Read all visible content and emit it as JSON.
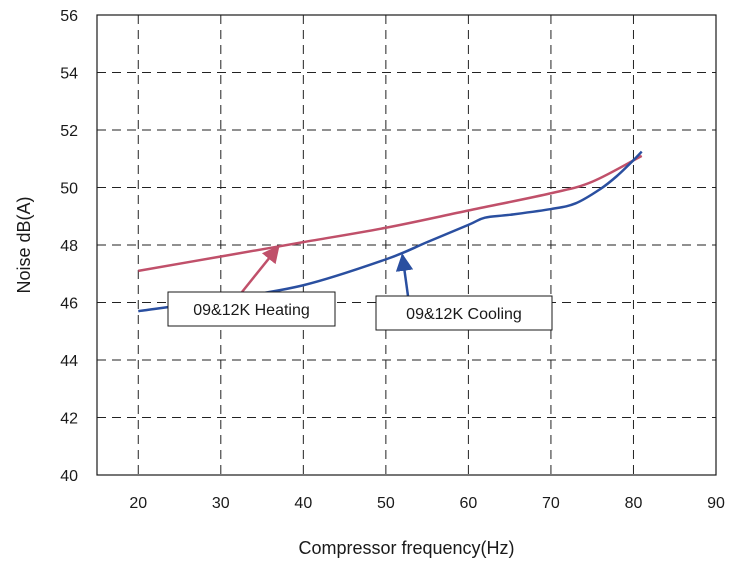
{
  "chart_data": {
    "type": "line",
    "title": "",
    "xlabel": "Compressor frequency(Hz)",
    "ylabel": "Noise dB(A)",
    "xlim": [
      15,
      90
    ],
    "ylim": [
      40,
      56
    ],
    "x_ticks": [
      "20",
      "30",
      "40",
      "50",
      "60",
      "70",
      "80",
      "90"
    ],
    "y_ticks": [
      "40",
      "42",
      "44",
      "46",
      "48",
      "50",
      "52",
      "54",
      "56"
    ],
    "grid": true,
    "grid_style": "dashed",
    "series": [
      {
        "name": "09&12K Heating",
        "color": "#c0506a",
        "points": [
          [
            20,
            47.1
          ],
          [
            30,
            47.6
          ],
          [
            40,
            48.1
          ],
          [
            50,
            48.6
          ],
          [
            60,
            49.2
          ],
          [
            70,
            49.8
          ],
          [
            75,
            50.2
          ],
          [
            81,
            51.1
          ]
        ]
      },
      {
        "name": "09&12K Cooling",
        "color": "#2a4fa0",
        "points": [
          [
            20,
            45.7
          ],
          [
            30,
            46.1
          ],
          [
            40,
            46.6
          ],
          [
            50,
            47.5
          ],
          [
            55,
            48.1
          ],
          [
            60,
            48.7
          ],
          [
            62,
            48.95
          ],
          [
            65,
            49.05
          ],
          [
            70,
            49.25
          ],
          [
            73,
            49.45
          ],
          [
            76,
            49.95
          ],
          [
            78,
            50.4
          ],
          [
            80,
            50.95
          ],
          [
            81,
            51.25
          ]
        ]
      }
    ],
    "annotations": [
      {
        "text": "09&12K Heating",
        "series": "09&12K Heating",
        "arrow_to": [
          37,
          47.95
        ]
      },
      {
        "text": "09&12K Cooling",
        "series": "09&12K Cooling",
        "arrow_to": [
          52,
          47.65
        ]
      }
    ]
  }
}
